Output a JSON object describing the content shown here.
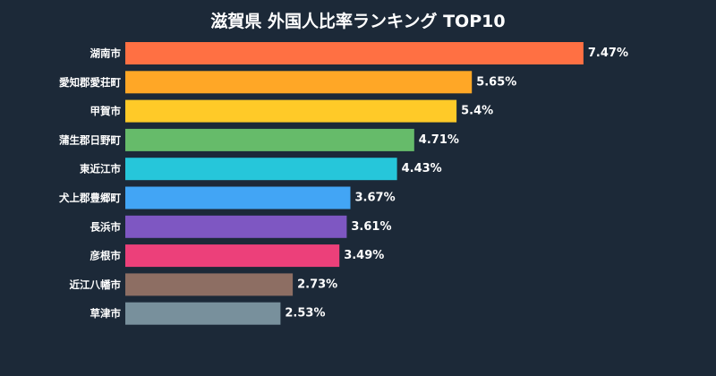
{
  "chart_data": {
    "type": "bar",
    "orientation": "horizontal",
    "title": "滋賀県 外国人比率ランキング TOP10",
    "categories": [
      "湖南市",
      "愛知郡愛荘町",
      "甲賀市",
      "蒲生郡日野町",
      "東近江市",
      "犬上郡豊郷町",
      "長浜市",
      "彦根市",
      "近江八幡市",
      "草津市"
    ],
    "values": [
      7.47,
      5.65,
      5.4,
      4.71,
      4.43,
      3.67,
      3.61,
      3.49,
      2.73,
      2.53
    ],
    "value_labels": [
      "7.47%",
      "5.65%",
      "5.4%",
      "4.71%",
      "4.43%",
      "3.67%",
      "3.61%",
      "3.49%",
      "2.73%",
      "2.53%"
    ],
    "colors": [
      "#ff7043",
      "#ffa726",
      "#ffca28",
      "#66bb6a",
      "#26c6da",
      "#42a5f5",
      "#7e57c2",
      "#ec407a",
      "#8d6e63",
      "#78909c"
    ],
    "xlim": [
      0,
      7.5
    ],
    "grid": false,
    "legend": "none"
  },
  "theme": {
    "background": "#1c2938",
    "text": "#ffffff"
  }
}
